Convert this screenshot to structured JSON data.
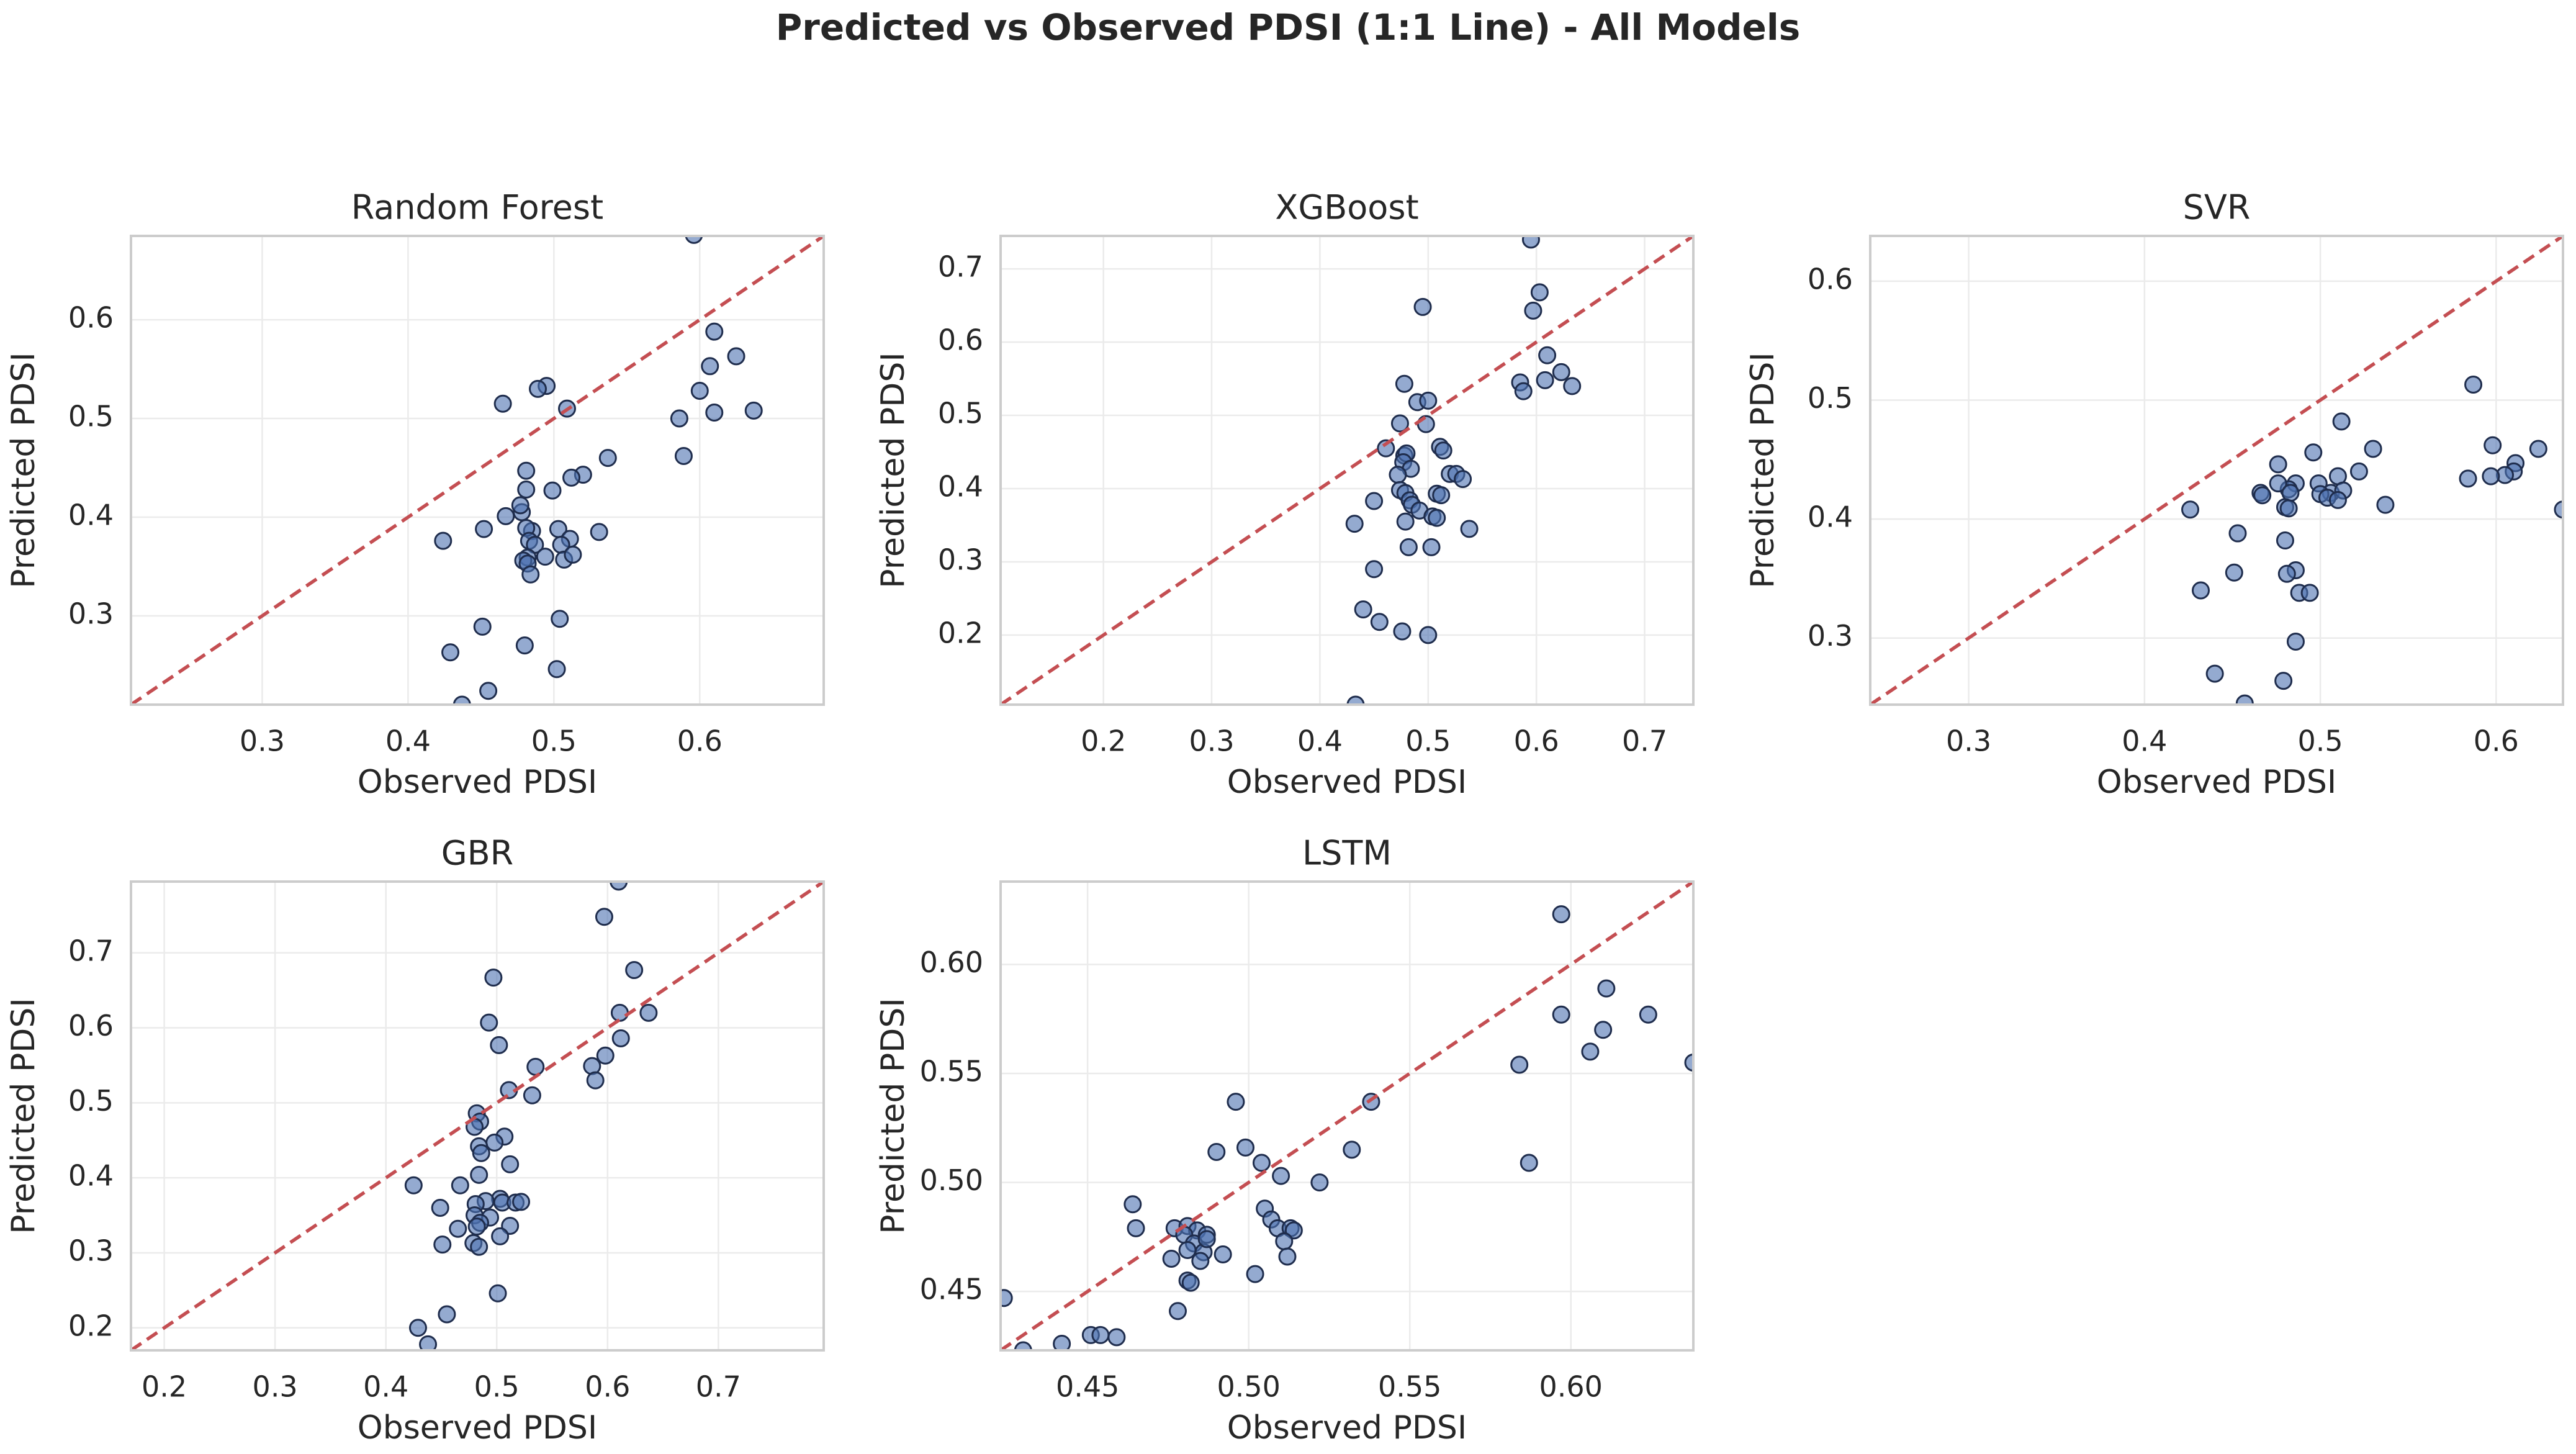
{
  "figure": {
    "title": "Predicted vs Observed PDSI (1:1 Line) - All Models",
    "reference_line_color": "#c44e52",
    "point_fill": "#4c72b0",
    "point_edge": "#1f2d4d",
    "frame_color": "#cccccc",
    "grid_color": "#ebebeb"
  },
  "chart_data": [
    {
      "type": "scatter",
      "title": "Random Forest",
      "xlabel": "Observed PDSI",
      "ylabel": "Predicted PDSI",
      "xlim": [
        0.21,
        0.685
      ],
      "ylim": [
        0.21,
        0.685
      ],
      "xticks": [
        0.3,
        0.4,
        0.5,
        0.6
      ],
      "yticks": [
        0.3,
        0.4,
        0.5,
        0.6
      ],
      "xtick_labels": [
        "0.3",
        "0.4",
        "0.5",
        "0.6"
      ],
      "ytick_labels": [
        "0.3",
        "0.4",
        "0.5",
        "0.6"
      ],
      "reference_line": "y = x",
      "points": [
        [
          0.596,
          0.686
        ],
        [
          0.61,
          0.588
        ],
        [
          0.625,
          0.563
        ],
        [
          0.607,
          0.553
        ],
        [
          0.6,
          0.528
        ],
        [
          0.637,
          0.508
        ],
        [
          0.61,
          0.506
        ],
        [
          0.586,
          0.5
        ],
        [
          0.589,
          0.462
        ],
        [
          0.495,
          0.533
        ],
        [
          0.489,
          0.53
        ],
        [
          0.465,
          0.515
        ],
        [
          0.509,
          0.51
        ],
        [
          0.537,
          0.46
        ],
        [
          0.52,
          0.443
        ],
        [
          0.512,
          0.44
        ],
        [
          0.481,
          0.447
        ],
        [
          0.499,
          0.427
        ],
        [
          0.481,
          0.428
        ],
        [
          0.467,
          0.401
        ],
        [
          0.478,
          0.405
        ],
        [
          0.477,
          0.412
        ],
        [
          0.452,
          0.388
        ],
        [
          0.485,
          0.386
        ],
        [
          0.481,
          0.389
        ],
        [
          0.483,
          0.376
        ],
        [
          0.487,
          0.372
        ],
        [
          0.503,
          0.388
        ],
        [
          0.511,
          0.378
        ],
        [
          0.531,
          0.385
        ],
        [
          0.505,
          0.372
        ],
        [
          0.494,
          0.36
        ],
        [
          0.482,
          0.359
        ],
        [
          0.479,
          0.356
        ],
        [
          0.482,
          0.353
        ],
        [
          0.484,
          0.342
        ],
        [
          0.507,
          0.357
        ],
        [
          0.513,
          0.362
        ],
        [
          0.424,
          0.376
        ],
        [
          0.504,
          0.297
        ],
        [
          0.451,
          0.289
        ],
        [
          0.48,
          0.27
        ],
        [
          0.429,
          0.263
        ],
        [
          0.502,
          0.246
        ],
        [
          0.455,
          0.224
        ],
        [
          0.437,
          0.21
        ]
      ]
    },
    {
      "type": "scatter",
      "title": "XGBoost",
      "xlabel": "Observed PDSI",
      "ylabel": "Predicted PDSI",
      "xlim": [
        0.105,
        0.745
      ],
      "ylim": [
        0.105,
        0.745
      ],
      "xticks": [
        0.2,
        0.3,
        0.4,
        0.5,
        0.6,
        0.7
      ],
      "yticks": [
        0.2,
        0.3,
        0.4,
        0.5,
        0.6,
        0.7
      ],
      "xtick_labels": [
        "0.2",
        "0.3",
        "0.4",
        "0.5",
        "0.6",
        "0.7"
      ],
      "ytick_labels": [
        "0.2",
        "0.3",
        "0.4",
        "0.5",
        "0.6",
        "0.7"
      ],
      "reference_line": "y = x",
      "points": [
        [
          0.595,
          0.74
        ],
        [
          0.495,
          0.648
        ],
        [
          0.603,
          0.668
        ],
        [
          0.597,
          0.643
        ],
        [
          0.61,
          0.582
        ],
        [
          0.623,
          0.559
        ],
        [
          0.608,
          0.548
        ],
        [
          0.585,
          0.545
        ],
        [
          0.633,
          0.54
        ],
        [
          0.588,
          0.533
        ],
        [
          0.478,
          0.543
        ],
        [
          0.49,
          0.518
        ],
        [
          0.5,
          0.52
        ],
        [
          0.498,
          0.488
        ],
        [
          0.474,
          0.489
        ],
        [
          0.461,
          0.455
        ],
        [
          0.478,
          0.445
        ],
        [
          0.48,
          0.448
        ],
        [
          0.477,
          0.436
        ],
        [
          0.484,
          0.427
        ],
        [
          0.472,
          0.419
        ],
        [
          0.511,
          0.457
        ],
        [
          0.514,
          0.452
        ],
        [
          0.52,
          0.42
        ],
        [
          0.526,
          0.42
        ],
        [
          0.532,
          0.413
        ],
        [
          0.508,
          0.393
        ],
        [
          0.512,
          0.391
        ],
        [
          0.474,
          0.398
        ],
        [
          0.479,
          0.394
        ],
        [
          0.483,
          0.384
        ],
        [
          0.485,
          0.378
        ],
        [
          0.45,
          0.383
        ],
        [
          0.492,
          0.37
        ],
        [
          0.504,
          0.362
        ],
        [
          0.508,
          0.36
        ],
        [
          0.479,
          0.355
        ],
        [
          0.432,
          0.352
        ],
        [
          0.538,
          0.345
        ],
        [
          0.503,
          0.32
        ],
        [
          0.482,
          0.32
        ],
        [
          0.45,
          0.29
        ],
        [
          0.44,
          0.235
        ],
        [
          0.455,
          0.218
        ],
        [
          0.476,
          0.205
        ],
        [
          0.5,
          0.2
        ],
        [
          0.433,
          0.105
        ]
      ]
    },
    {
      "type": "scatter",
      "title": "SVR",
      "xlabel": "Observed PDSI",
      "ylabel": "Predicted PDSI",
      "xlim": [
        0.244,
        0.638
      ],
      "ylim": [
        0.244,
        0.638
      ],
      "xticks": [
        0.3,
        0.4,
        0.5,
        0.6
      ],
      "yticks": [
        0.3,
        0.4,
        0.5,
        0.6
      ],
      "xtick_labels": [
        "0.3",
        "0.4",
        "0.5",
        "0.6"
      ],
      "ytick_labels": [
        "0.3",
        "0.4",
        "0.5",
        "0.6"
      ],
      "reference_line": "y = x",
      "points": [
        [
          0.587,
          0.513
        ],
        [
          0.598,
          0.462
        ],
        [
          0.624,
          0.459
        ],
        [
          0.611,
          0.447
        ],
        [
          0.61,
          0.44
        ],
        [
          0.605,
          0.437
        ],
        [
          0.597,
          0.436
        ],
        [
          0.584,
          0.434
        ],
        [
          0.638,
          0.408
        ],
        [
          0.53,
          0.459
        ],
        [
          0.512,
          0.482
        ],
        [
          0.522,
          0.44
        ],
        [
          0.496,
          0.456
        ],
        [
          0.476,
          0.446
        ],
        [
          0.51,
          0.436
        ],
        [
          0.499,
          0.43
        ],
        [
          0.506,
          0.422
        ],
        [
          0.5,
          0.421
        ],
        [
          0.504,
          0.418
        ],
        [
          0.513,
          0.424
        ],
        [
          0.51,
          0.416
        ],
        [
          0.486,
          0.43
        ],
        [
          0.482,
          0.425
        ],
        [
          0.476,
          0.43
        ],
        [
          0.466,
          0.422
        ],
        [
          0.467,
          0.42
        ],
        [
          0.483,
          0.422
        ],
        [
          0.48,
          0.41
        ],
        [
          0.482,
          0.409
        ],
        [
          0.537,
          0.412
        ],
        [
          0.426,
          0.408
        ],
        [
          0.453,
          0.388
        ],
        [
          0.48,
          0.382
        ],
        [
          0.486,
          0.357
        ],
        [
          0.481,
          0.354
        ],
        [
          0.451,
          0.355
        ],
        [
          0.432,
          0.34
        ],
        [
          0.488,
          0.338
        ],
        [
          0.494,
          0.338
        ],
        [
          0.486,
          0.297
        ],
        [
          0.44,
          0.27
        ],
        [
          0.479,
          0.264
        ],
        [
          0.457,
          0.245
        ]
      ]
    },
    {
      "type": "scatter",
      "title": "GBR",
      "xlabel": "Observed PDSI",
      "ylabel": "Predicted PDSI",
      "xlim": [
        0.17,
        0.795
      ],
      "ylim": [
        0.17,
        0.795
      ],
      "xticks": [
        0.2,
        0.3,
        0.4,
        0.5,
        0.6,
        0.7
      ],
      "yticks": [
        0.2,
        0.3,
        0.4,
        0.5,
        0.6,
        0.7
      ],
      "xtick_labels": [
        "0.2",
        "0.3",
        "0.4",
        "0.5",
        "0.6",
        "0.7"
      ],
      "ytick_labels": [
        "0.2",
        "0.3",
        "0.4",
        "0.5",
        "0.6",
        "0.7"
      ],
      "reference_line": "y = x",
      "points": [
        [
          0.61,
          0.795
        ],
        [
          0.597,
          0.748
        ],
        [
          0.624,
          0.677
        ],
        [
          0.497,
          0.667
        ],
        [
          0.493,
          0.607
        ],
        [
          0.637,
          0.62
        ],
        [
          0.611,
          0.62
        ],
        [
          0.612,
          0.586
        ],
        [
          0.598,
          0.563
        ],
        [
          0.586,
          0.549
        ],
        [
          0.589,
          0.53
        ],
        [
          0.502,
          0.577
        ],
        [
          0.535,
          0.548
        ],
        [
          0.511,
          0.517
        ],
        [
          0.532,
          0.51
        ],
        [
          0.482,
          0.486
        ],
        [
          0.485,
          0.475
        ],
        [
          0.48,
          0.468
        ],
        [
          0.507,
          0.455
        ],
        [
          0.498,
          0.447
        ],
        [
          0.484,
          0.442
        ],
        [
          0.486,
          0.433
        ],
        [
          0.512,
          0.418
        ],
        [
          0.484,
          0.404
        ],
        [
          0.425,
          0.39
        ],
        [
          0.467,
          0.39
        ],
        [
          0.503,
          0.372
        ],
        [
          0.49,
          0.369
        ],
        [
          0.505,
          0.367
        ],
        [
          0.517,
          0.367
        ],
        [
          0.522,
          0.368
        ],
        [
          0.481,
          0.365
        ],
        [
          0.449,
          0.36
        ],
        [
          0.48,
          0.35
        ],
        [
          0.494,
          0.347
        ],
        [
          0.485,
          0.34
        ],
        [
          0.482,
          0.335
        ],
        [
          0.465,
          0.332
        ],
        [
          0.512,
          0.336
        ],
        [
          0.503,
          0.322
        ],
        [
          0.479,
          0.313
        ],
        [
          0.484,
          0.308
        ],
        [
          0.451,
          0.311
        ],
        [
          0.501,
          0.246
        ],
        [
          0.455,
          0.218
        ],
        [
          0.429,
          0.2
        ],
        [
          0.438,
          0.178
        ]
      ]
    },
    {
      "type": "scatter",
      "title": "LSTM",
      "xlabel": "Observed PDSI",
      "ylabel": "Predicted PDSI",
      "xlim": [
        0.423,
        0.638
      ],
      "ylim": [
        0.423,
        0.638
      ],
      "xticks": [
        0.45,
        0.5,
        0.55,
        0.6
      ],
      "yticks": [
        0.45,
        0.5,
        0.55,
        0.6
      ],
      "xtick_labels": [
        "0.45",
        "0.50",
        "0.55",
        "0.60"
      ],
      "ytick_labels": [
        "0.45",
        "0.50",
        "0.55",
        "0.60"
      ],
      "reference_line": "y = x",
      "points": [
        [
          0.597,
          0.623
        ],
        [
          0.611,
          0.589
        ],
        [
          0.624,
          0.577
        ],
        [
          0.597,
          0.577
        ],
        [
          0.61,
          0.57
        ],
        [
          0.606,
          0.56
        ],
        [
          0.584,
          0.554
        ],
        [
          0.638,
          0.555
        ],
        [
          0.587,
          0.509
        ],
        [
          0.496,
          0.537
        ],
        [
          0.538,
          0.537
        ],
        [
          0.532,
          0.515
        ],
        [
          0.499,
          0.516
        ],
        [
          0.49,
          0.514
        ],
        [
          0.504,
          0.509
        ],
        [
          0.51,
          0.503
        ],
        [
          0.522,
          0.5
        ],
        [
          0.464,
          0.49
        ],
        [
          0.505,
          0.488
        ],
        [
          0.507,
          0.483
        ],
        [
          0.509,
          0.479
        ],
        [
          0.513,
          0.479
        ],
        [
          0.514,
          0.478
        ],
        [
          0.465,
          0.479
        ],
        [
          0.477,
          0.479
        ],
        [
          0.481,
          0.48
        ],
        [
          0.484,
          0.478
        ],
        [
          0.487,
          0.476
        ],
        [
          0.48,
          0.476
        ],
        [
          0.483,
          0.472
        ],
        [
          0.481,
          0.469
        ],
        [
          0.486,
          0.468
        ],
        [
          0.487,
          0.474
        ],
        [
          0.492,
          0.467
        ],
        [
          0.476,
          0.465
        ],
        [
          0.485,
          0.464
        ],
        [
          0.511,
          0.473
        ],
        [
          0.502,
          0.458
        ],
        [
          0.512,
          0.466
        ],
        [
          0.481,
          0.455
        ],
        [
          0.482,
          0.454
        ],
        [
          0.478,
          0.441
        ],
        [
          0.424,
          0.447
        ],
        [
          0.442,
          0.426
        ],
        [
          0.451,
          0.43
        ],
        [
          0.454,
          0.43
        ],
        [
          0.459,
          0.429
        ],
        [
          0.43,
          0.423
        ]
      ]
    }
  ]
}
